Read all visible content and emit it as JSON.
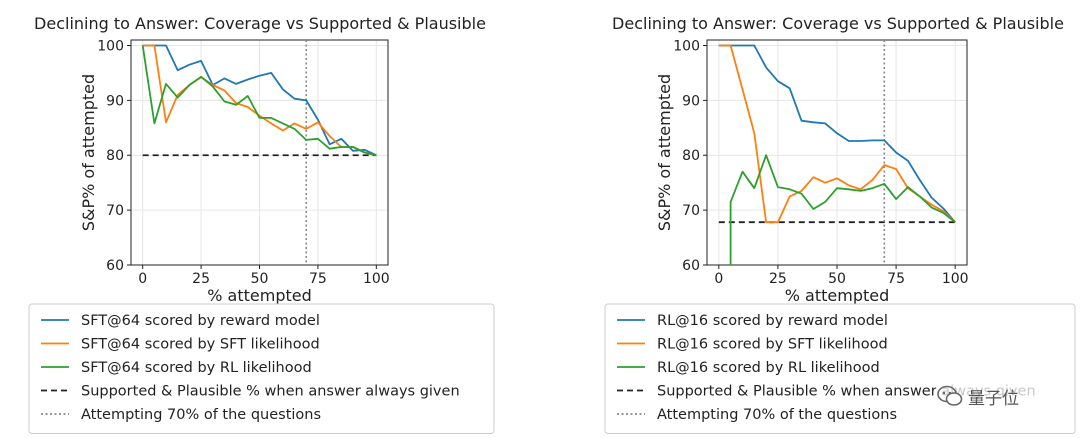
{
  "chart_data": [
    {
      "type": "line",
      "title": "Declining to Answer: Coverage vs Supported & Plausible",
      "xlabel": "% attempted",
      "ylabel": "S&P% of attempted",
      "xlim": [
        -5,
        105
      ],
      "ylim": [
        60,
        101
      ],
      "xticks": [
        0,
        25,
        50,
        75,
        100
      ],
      "yticks": [
        60,
        70,
        80,
        90,
        100
      ],
      "grid": true,
      "series": [
        {
          "name": "SFT@64 scored by reward model",
          "color": "#1f77b4",
          "x": [
            0,
            5,
            10,
            15,
            20,
            25,
            30,
            35,
            40,
            45,
            50,
            55,
            60,
            65,
            70,
            75,
            80,
            85,
            90,
            95,
            100
          ],
          "y": [
            100,
            100,
            100,
            95.5,
            96.5,
            97.2,
            92.8,
            94,
            93,
            93.8,
            94.5,
            95,
            92,
            90.3,
            90,
            86.5,
            82,
            83,
            80.8,
            81,
            80
          ]
        },
        {
          "name": "SFT@64 scored by SFT likelihood",
          "color": "#ff7f0e",
          "x": [
            0,
            5,
            10,
            15,
            20,
            25,
            30,
            35,
            40,
            45,
            50,
            55,
            60,
            65,
            70,
            75,
            80,
            85,
            90,
            95,
            100
          ],
          "y": [
            100,
            100,
            86,
            91,
            92.8,
            94.2,
            92.8,
            91.8,
            89.5,
            88.8,
            87.2,
            85.8,
            84.5,
            85.8,
            84.8,
            86,
            83.5,
            81.5,
            81.5,
            80.5,
            80
          ]
        },
        {
          "name": "SFT@64 scored by RL likelihood",
          "color": "#2ca02c",
          "x": [
            0,
            5,
            10,
            15,
            20,
            25,
            30,
            35,
            40,
            45,
            50,
            55,
            60,
            65,
            70,
            75,
            80,
            85,
            90,
            95,
            100
          ],
          "y": [
            100,
            85.8,
            93,
            90.5,
            92.8,
            94.3,
            92.5,
            89.8,
            89.2,
            90.8,
            86.8,
            86.8,
            85.8,
            84.8,
            82.8,
            83,
            81.2,
            81.5,
            81.5,
            80.5,
            80
          ]
        }
      ],
      "hlines": [
        {
          "name": "Supported & Plausible % when answer always given",
          "y": 80,
          "color": "#222222",
          "style": "dashed"
        }
      ],
      "vlines": [
        {
          "name": "Attempting 70% of the questions",
          "x": 70,
          "color": "#888888",
          "style": "dotted"
        }
      ]
    },
    {
      "type": "line",
      "title": "Declining to Answer: Coverage vs Supported & Plausible",
      "xlabel": "% attempted",
      "ylabel": "S&P% of attempted",
      "xlim": [
        -5,
        105
      ],
      "ylim": [
        60,
        101
      ],
      "xticks": [
        0,
        25,
        50,
        75,
        100
      ],
      "yticks": [
        60,
        70,
        80,
        90,
        100
      ],
      "grid": true,
      "series": [
        {
          "name": "RL@16 scored by reward model",
          "color": "#1f77b4",
          "x": [
            0,
            5,
            10,
            15,
            20,
            25,
            30,
            35,
            40,
            45,
            50,
            55,
            60,
            65,
            70,
            75,
            80,
            85,
            90,
            95,
            100
          ],
          "y": [
            100,
            100,
            100,
            100,
            96,
            93.5,
            92.2,
            86.3,
            86,
            85.8,
            84,
            82.6,
            82.6,
            82.7,
            82.7,
            80.5,
            79,
            75.5,
            72.3,
            70.3,
            67.8
          ]
        },
        {
          "name": "RL@16 scored by SFT likelihood",
          "color": "#ff7f0e",
          "x": [
            0,
            5,
            10,
            15,
            20,
            25,
            30,
            35,
            40,
            45,
            50,
            55,
            60,
            65,
            70,
            75,
            80,
            85,
            90,
            95,
            100
          ],
          "y": [
            100,
            100,
            92,
            84,
            67.8,
            67.8,
            72.5,
            73.5,
            76,
            75,
            75.8,
            74.5,
            73.8,
            75.5,
            78.2,
            77.5,
            74,
            72.5,
            71,
            69.8,
            67.8
          ]
        },
        {
          "name": "RL@16 scored by RL likelihood",
          "color": "#2ca02c",
          "x": [
            5,
            5,
            10,
            15,
            20,
            25,
            30,
            35,
            40,
            45,
            50,
            55,
            60,
            65,
            70,
            75,
            80,
            85,
            90,
            95,
            100
          ],
          "y": [
            60,
            71.5,
            77,
            74,
            80,
            74.2,
            73.8,
            73,
            70.2,
            71.5,
            74,
            73.8,
            73.5,
            74,
            74.8,
            72,
            74.2,
            72.5,
            70.5,
            69.5,
            67.8
          ]
        }
      ],
      "hlines": [
        {
          "name": "Supported & Plausible % when answer always given",
          "y": 67.8,
          "color": "#222222",
          "style": "dashed"
        }
      ],
      "vlines": [
        {
          "name": "Attempting 70% of the questions",
          "x": 70,
          "color": "#888888",
          "style": "dotted"
        }
      ]
    }
  ],
  "watermark": {
    "text": "量子位",
    "icon": "wechat-icon"
  }
}
